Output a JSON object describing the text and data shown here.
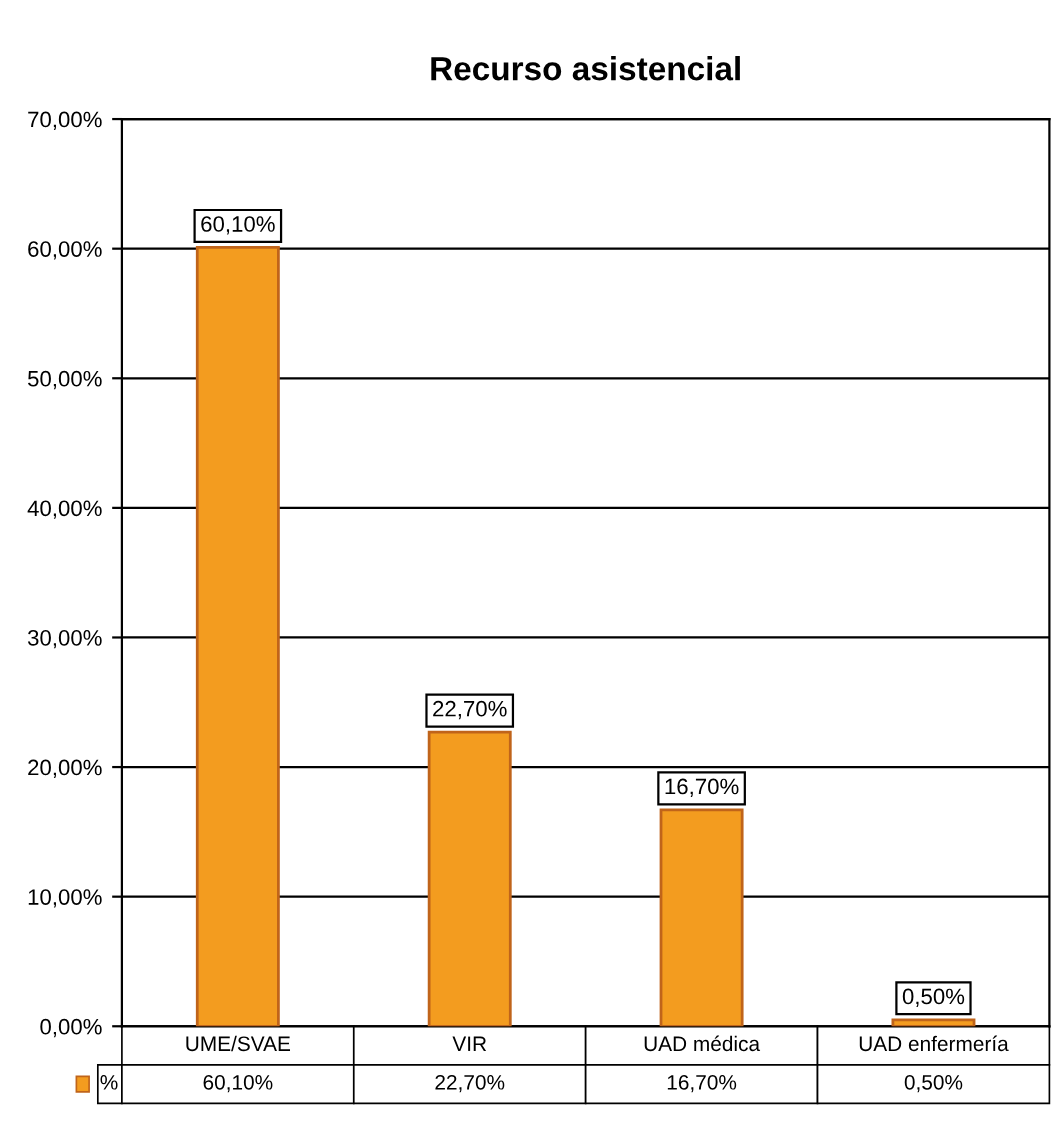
{
  "chart_data": {
    "type": "bar",
    "title": "Recurso asistencial",
    "categories": [
      "UME/SVAE",
      "VIR",
      "UAD médica",
      "UAD enfermería"
    ],
    "series": [
      {
        "name": "%",
        "color": "#f39c1f",
        "values": [
          60.1,
          22.7,
          16.7,
          0.5
        ],
        "value_labels": [
          "60,10%",
          "22,70%",
          "16,70%",
          "0,50%"
        ]
      }
    ],
    "ylim": [
      0,
      70
    ],
    "yticks": [
      {
        "value": 0,
        "label": "0,00%"
      },
      {
        "value": 10,
        "label": "10,00%"
      },
      {
        "value": 20,
        "label": "20,00%"
      },
      {
        "value": 30,
        "label": "30,00%"
      },
      {
        "value": 40,
        "label": "40,00%"
      },
      {
        "value": 50,
        "label": "50,00%"
      },
      {
        "value": 60,
        "label": "60,00%"
      },
      {
        "value": 70,
        "label": "70,00%"
      }
    ],
    "grid": "y"
  }
}
